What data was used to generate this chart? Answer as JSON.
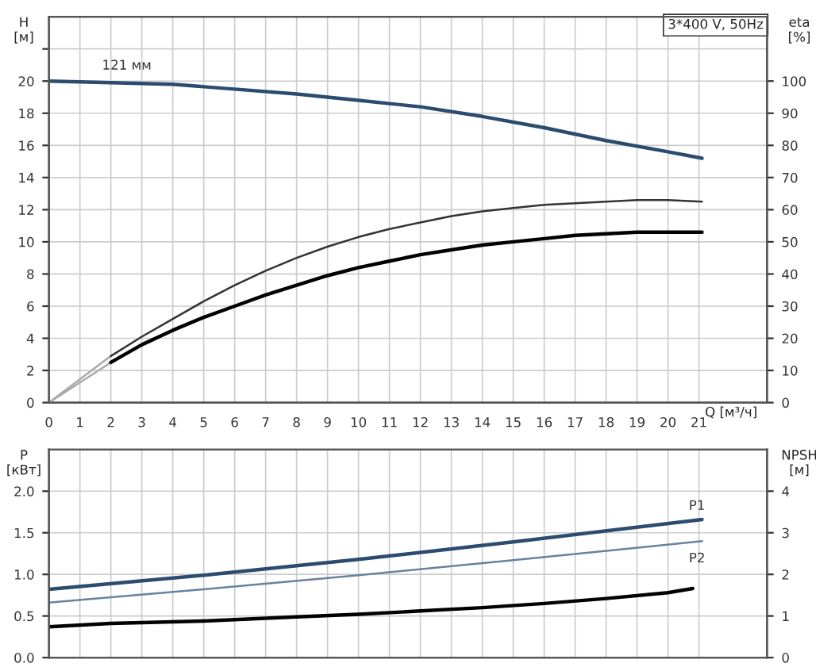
{
  "chart_data": [
    {
      "type": "line",
      "title": "3*400 V, 50Hz",
      "xlabel": "Q [м³/ч]",
      "ylabel": "H\n[м]",
      "y2label": "eta\n[%]",
      "xlim": [
        0,
        23.2
      ],
      "xticks": [
        0,
        1,
        2,
        3,
        4,
        5,
        6,
        7,
        8,
        9,
        10,
        11,
        12,
        13,
        14,
        15,
        16,
        17,
        18,
        19,
        20,
        21
      ],
      "ylim": [
        0,
        24
      ],
      "yticks": [
        0,
        2,
        4,
        6,
        8,
        10,
        12,
        14,
        16,
        18,
        20,
        {
          "value": 22,
          "label": null
        }
      ],
      "y2lim": [
        0,
        120
      ],
      "y2ticks": [
        0,
        10,
        20,
        30,
        40,
        50,
        60,
        70,
        80,
        90,
        100
      ],
      "grid": true,
      "legend": false,
      "annotations": [
        {
          "text": "121 мм",
          "x": 2,
          "y": 20
        }
      ],
      "series": [
        {
          "color": "#2b4c6f",
          "x": [
            0,
            2,
            4,
            6,
            8,
            10,
            12,
            14,
            16,
            18,
            20,
            21.1
          ],
          "values": [
            20,
            19.9,
            19.8,
            19.5,
            19.2,
            18.8,
            18.4,
            17.8,
            17.1,
            16.3,
            15.6,
            15.2
          ]
        },
        {
          "color": "#aaaaaa",
          "axis": "y2",
          "x": [
            0,
            2
          ],
          "values": [
            0,
            14.5
          ]
        },
        {
          "color": "#aaaaaa",
          "axis": "y2",
          "x": [
            0,
            2
          ],
          "values": [
            0,
            12.5
          ]
        },
        {
          "color": "#333333",
          "axis": "y2",
          "x": [
            2,
            3,
            4,
            5,
            6,
            7,
            8,
            9,
            10,
            11,
            12,
            13,
            14,
            15,
            16,
            17,
            18,
            19,
            20,
            21.1
          ],
          "values": [
            14.5,
            20.5,
            26,
            31.5,
            36.5,
            41,
            45,
            48.5,
            51.5,
            54,
            56,
            58,
            59.5,
            60.5,
            61.5,
            62,
            62.5,
            63,
            63,
            62.5
          ]
        },
        {
          "color": "#000000",
          "axis": "y2",
          "x": [
            2,
            3,
            4,
            5,
            6,
            7,
            8,
            9,
            10,
            11,
            12,
            13,
            14,
            15,
            16,
            17,
            18,
            19,
            20,
            21.1
          ],
          "values": [
            12.5,
            18,
            22.5,
            26.5,
            30,
            33.5,
            36.5,
            39.5,
            42,
            44,
            46,
            47.5,
            49,
            50,
            51,
            52,
            52.5,
            53,
            53,
            53
          ]
        }
      ]
    },
    {
      "type": "line",
      "ylabel": "P\n[кВт]",
      "y2label": "NPSH\n[м]",
      "xlim": [
        0,
        23.2
      ],
      "xticks": [
        0,
        1,
        2,
        3,
        4,
        5,
        6,
        7,
        8,
        9,
        10,
        11,
        12,
        13,
        14,
        15,
        16,
        17,
        18,
        19,
        20,
        21
      ],
      "ylim": [
        0,
        2.5
      ],
      "yticks": [
        {
          "value": 0,
          "label": "0.0"
        },
        0.5,
        {
          "value": 1,
          "label": "1.0"
        },
        1.5,
        {
          "value": 2,
          "label": "2.0"
        }
      ],
      "y2lim": [
        0,
        5
      ],
      "y2ticks": [
        0,
        1,
        2,
        3,
        4
      ],
      "grid": true,
      "legend": false,
      "tick_labels": "y",
      "series": [
        {
          "name": "P1",
          "color": "#2b4c6f",
          "x": [
            0,
            5,
            10,
            15,
            21.1
          ],
          "values": [
            0.82,
            0.99,
            1.18,
            1.39,
            1.66
          ]
        },
        {
          "name": "P2",
          "color": "#6683a0",
          "x": [
            0,
            5,
            10,
            15,
            21.1
          ],
          "values": [
            0.66,
            0.82,
            0.99,
            1.17,
            1.4
          ]
        },
        {
          "color": "#000000",
          "axis": "y2",
          "x": [
            0,
            2,
            5,
            8,
            10,
            12,
            14,
            16,
            18,
            20,
            20.8
          ],
          "values": [
            0.74,
            0.82,
            0.88,
            0.98,
            1.04,
            1.12,
            1.2,
            1.3,
            1.42,
            1.56,
            1.66
          ]
        }
      ]
    }
  ]
}
